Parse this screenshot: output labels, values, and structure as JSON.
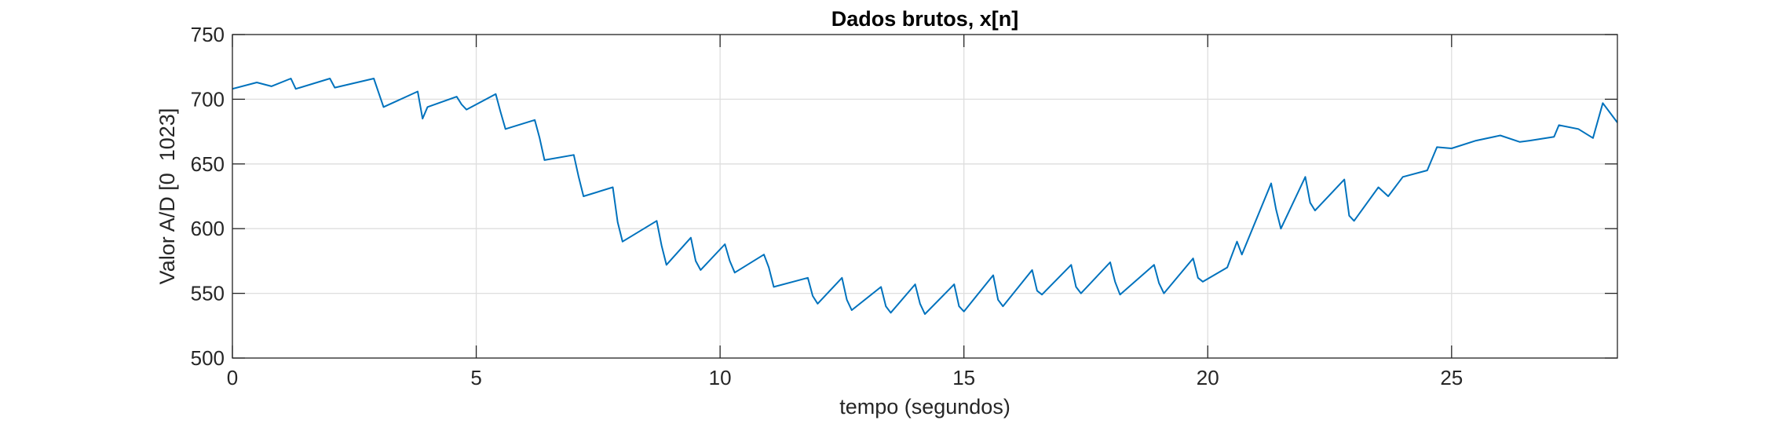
{
  "chart_data": {
    "type": "line",
    "title": "Dados brutos, x[n]",
    "xlabel": "tempo (segundos)",
    "ylabel": "Valor A/D [0  1023]",
    "xlim": [
      0,
      28.4
    ],
    "ylim": [
      500,
      750
    ],
    "xticks": [
      0,
      5,
      10,
      15,
      20,
      25
    ],
    "xtick_labels": [
      "0",
      "5",
      "10",
      "15",
      "20",
      "25"
    ],
    "yticks": [
      500,
      550,
      600,
      650,
      700,
      750
    ],
    "ytick_labels": [
      "500",
      "550",
      "600",
      "650",
      "700",
      "750"
    ],
    "grid": true,
    "series": [
      {
        "color": "#0072BD",
        "x": [
          0,
          0.5,
          0.8,
          1.2,
          1.3,
          2.0,
          2.1,
          2.9,
          3.0,
          3.1,
          3.8,
          3.9,
          4.0,
          4.6,
          4.7,
          4.8,
          5.4,
          5.5,
          5.6,
          6.2,
          6.3,
          6.4,
          7.0,
          7.1,
          7.2,
          7.8,
          7.9,
          8.0,
          8.7,
          8.8,
          8.9,
          9.4,
          9.5,
          9.6,
          10.1,
          10.2,
          10.3,
          10.9,
          11.0,
          11.1,
          11.8,
          11.9,
          12.0,
          12.5,
          12.6,
          12.7,
          13.3,
          13.4,
          13.5,
          14.0,
          14.1,
          14.2,
          14.8,
          14.9,
          15.0,
          15.6,
          15.7,
          15.8,
          16.4,
          16.5,
          16.6,
          17.2,
          17.3,
          17.4,
          18.0,
          18.1,
          18.2,
          18.9,
          19.0,
          19.1,
          19.7,
          19.8,
          19.9,
          20.4,
          20.6,
          20.7,
          21.3,
          21.4,
          21.5,
          22.0,
          22.1,
          22.2,
          22.8,
          22.9,
          23.0,
          23.5,
          23.7,
          24.0,
          24.5,
          24.7,
          25.0,
          25.5,
          26.0,
          26.4,
          26.6,
          27.1,
          27.2,
          27.6,
          27.9,
          28.1,
          28.4
        ],
        "y": [
          708,
          713,
          710,
          716,
          708,
          716,
          709,
          716,
          705,
          694,
          706,
          685,
          694,
          702,
          696,
          692,
          704,
          690,
          677,
          684,
          670,
          653,
          657,
          640,
          625,
          632,
          605,
          590,
          606,
          587,
          572,
          593,
          575,
          568,
          588,
          575,
          566,
          580,
          570,
          555,
          562,
          548,
          542,
          562,
          545,
          537,
          555,
          540,
          535,
          557,
          542,
          534,
          557,
          540,
          536,
          564,
          545,
          540,
          568,
          552,
          549,
          572,
          555,
          550,
          574,
          559,
          549,
          572,
          558,
          550,
          577,
          562,
          559,
          570,
          590,
          580,
          635,
          615,
          600,
          640,
          620,
          614,
          638,
          610,
          606,
          632,
          625,
          640,
          645,
          663,
          662,
          668,
          672,
          667,
          668,
          671,
          680,
          677,
          670,
          697,
          682
        ]
      }
    ]
  }
}
